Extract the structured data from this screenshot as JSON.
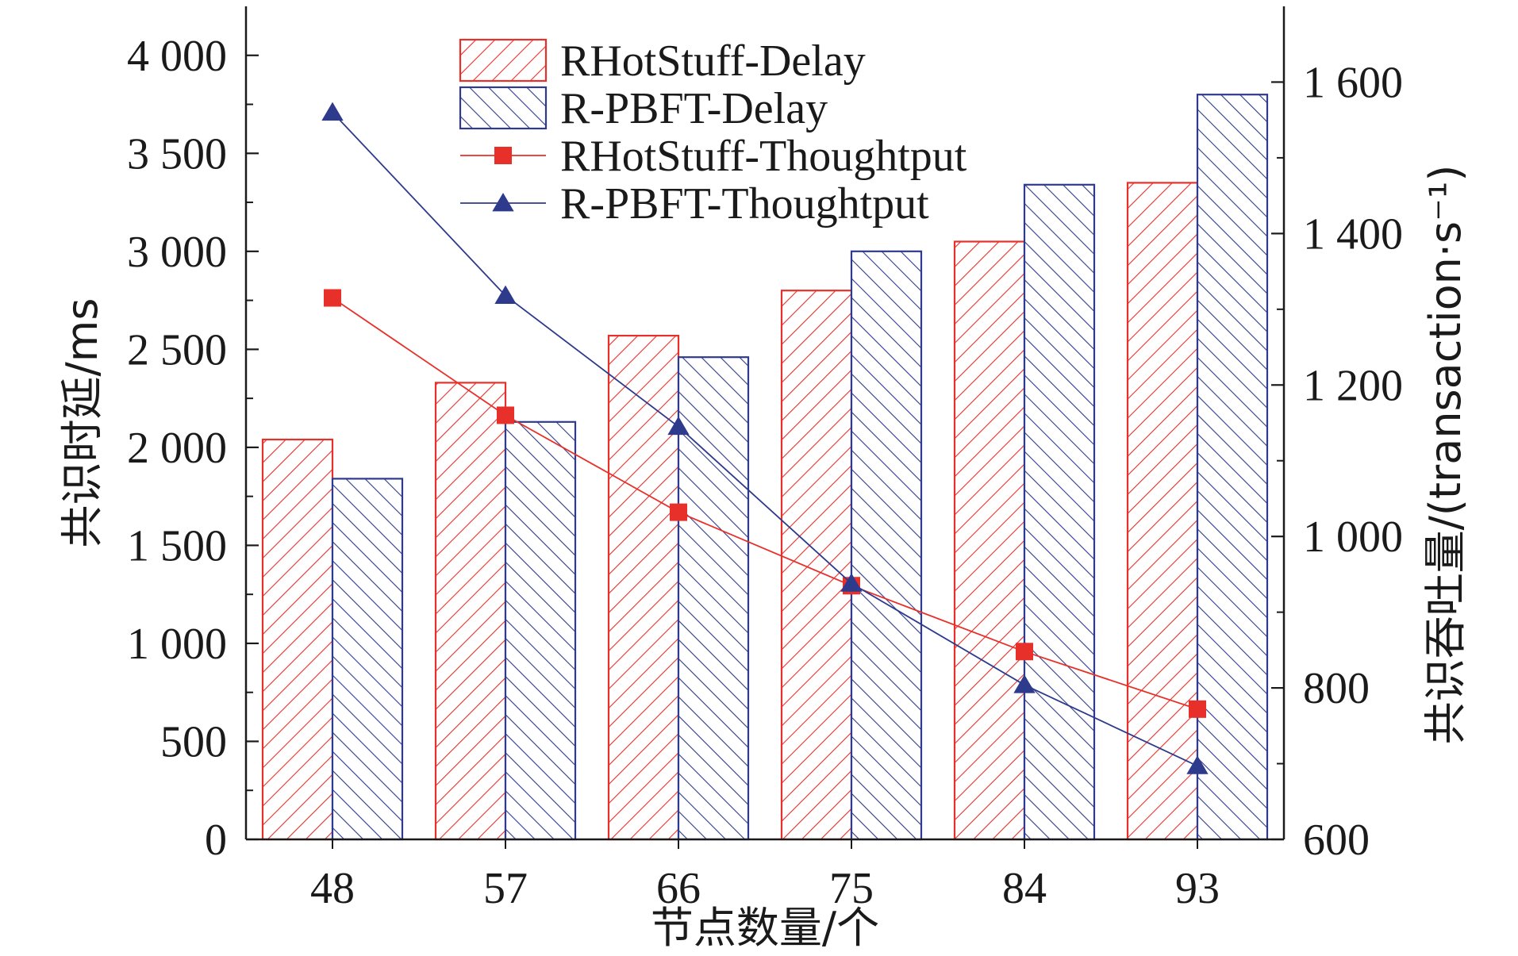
{
  "chart_data": {
    "type": "bar",
    "categories": [
      "48",
      "57",
      "66",
      "75",
      "84",
      "93"
    ],
    "xlabel": "节点数量/个",
    "ylabel": "共识时延/ms",
    "ylabel_right": "共识吞吐量/(transaction·s⁻¹)",
    "ylim": [
      0,
      4250
    ],
    "ylim_right": [
      600,
      1700
    ],
    "yticks": [
      0,
      500,
      1000,
      1500,
      2000,
      2500,
      3000,
      3500,
      4000
    ],
    "yticks_labels": [
      "0",
      "500",
      "1 000",
      "1 500",
      "2 000",
      "2 500",
      "3 000",
      "3 500",
      "4 000"
    ],
    "yticks_right": [
      600,
      800,
      1000,
      1200,
      1400,
      1600
    ],
    "yticks_right_labels": [
      "600",
      "800",
      "1 000",
      "1 200",
      "1 400",
      "1 600"
    ],
    "legend_position": "top",
    "series": [
      {
        "name": "RHotStuff-Delay",
        "type": "bar",
        "axis": "left",
        "color": "#e8302a",
        "values": [
          2040,
          2330,
          2570,
          2800,
          3050,
          3350
        ]
      },
      {
        "name": "R-PBFT-Delay",
        "type": "bar",
        "axis": "left",
        "color": "#2e3a8c",
        "values": [
          1840,
          2130,
          2460,
          3000,
          3340,
          3800
        ]
      },
      {
        "name": "RHotStuff-Thoughtput",
        "type": "line",
        "axis": "right",
        "marker": "square",
        "color": "#e8302a",
        "values": [
          1315,
          1160,
          1032,
          935,
          848,
          772
        ]
      },
      {
        "name": "R-PBFT-Thoughtput",
        "type": "line",
        "axis": "right",
        "marker": "triangle",
        "color": "#2e3a8c",
        "values": [
          1560,
          1318,
          1145,
          938,
          804,
          697
        ]
      }
    ]
  }
}
